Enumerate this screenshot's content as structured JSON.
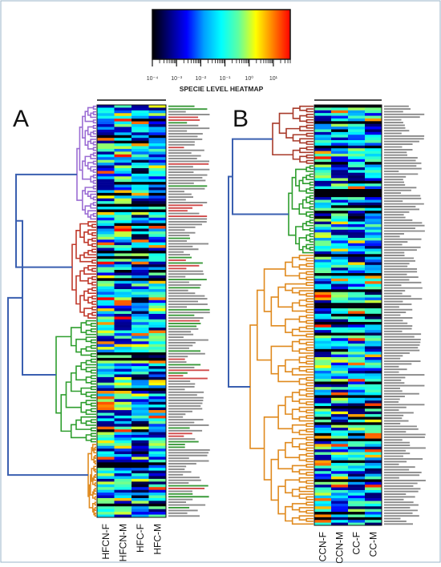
{
  "colorbar": {
    "title": "SPECIE LEVEL HEATMAP",
    "tick_labels": [
      "10⁻⁴",
      "10⁻³",
      "10⁻²",
      "10⁻¹",
      "10⁰",
      "10¹"
    ],
    "scale": "log",
    "range": [
      0.0001,
      50
    ],
    "colors": [
      "#000000",
      "#000080",
      "#0000ff",
      "#00a0ff",
      "#00ffff",
      "#60ffa0",
      "#ffff00",
      "#ff8000",
      "#ff0000"
    ]
  },
  "panels": [
    {
      "label": "A",
      "columns": [
        "HFCN-F",
        "HFCN-M",
        "HFC-F",
        "HFC-M"
      ]
    },
    {
      "label": "B",
      "columns": [
        "CCN-F",
        "CCN-M",
        "CC-F",
        "CC-M"
      ]
    }
  ],
  "chart_data": [
    {
      "type": "heatmap",
      "panel": "A",
      "columns": [
        "HFCN-F",
        "HFCN-M",
        "HFC-F",
        "HFC-M"
      ],
      "row_count": 150,
      "color_scale": "log",
      "value_range": [
        0.0001,
        50
      ],
      "clusters": [
        {
          "color": "#9b6dd4",
          "rows": 42
        },
        {
          "color": "#c0392b",
          "rows": 36
        },
        {
          "color": "#2e9e2e",
          "rows": 45
        },
        {
          "color": "#e08a1e",
          "rows": 27
        }
      ]
    },
    {
      "type": "heatmap",
      "panel": "B",
      "columns": [
        "CCN-F",
        "CCN-M",
        "CC-F",
        "CC-M"
      ],
      "row_count": 155,
      "color_scale": "log",
      "value_range": [
        0.0001,
        50
      ],
      "clusters": [
        {
          "color": "#a83a2a",
          "rows": 22
        },
        {
          "color": "#2e9e2e",
          "rows": 33
        },
        {
          "color": "#e08a1e",
          "rows": 100
        }
      ]
    }
  ]
}
